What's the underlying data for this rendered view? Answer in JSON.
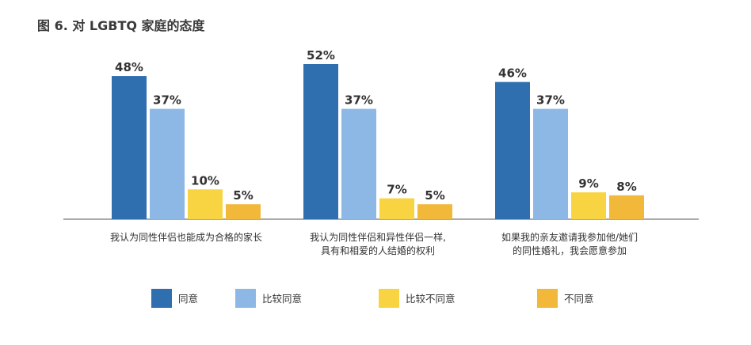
{
  "chart_data": {
    "type": "bar",
    "title": "图 6. 对 LGBTQ 家庭的态度",
    "categories": [
      [
        "我认为同性伴侣也能成为合格的家长"
      ],
      [
        "我认为同性伴侣和异性伴侣一样,",
        "具有和相爱的人结婚的权利"
      ],
      [
        "如果我的亲友邀请我参加他/她们",
        "的同性婚礼，我会愿意参加"
      ]
    ],
    "series": [
      {
        "name": "同意",
        "values": [
          48,
          52,
          46
        ],
        "color": "#2f6eaf"
      },
      {
        "name": "比较同意",
        "values": [
          37,
          37,
          37
        ],
        "color": "#8db8e6"
      },
      {
        "name": "比较不同意",
        "values": [
          10,
          7,
          9
        ],
        "color": "#f8d442"
      },
      {
        "name": "不同意",
        "values": [
          5,
          5,
          8
        ],
        "color": "#f2b83a"
      }
    ],
    "value_suffix": "%",
    "ylim": [
      0,
      55
    ],
    "grid": false,
    "legend_position": "bottom"
  }
}
